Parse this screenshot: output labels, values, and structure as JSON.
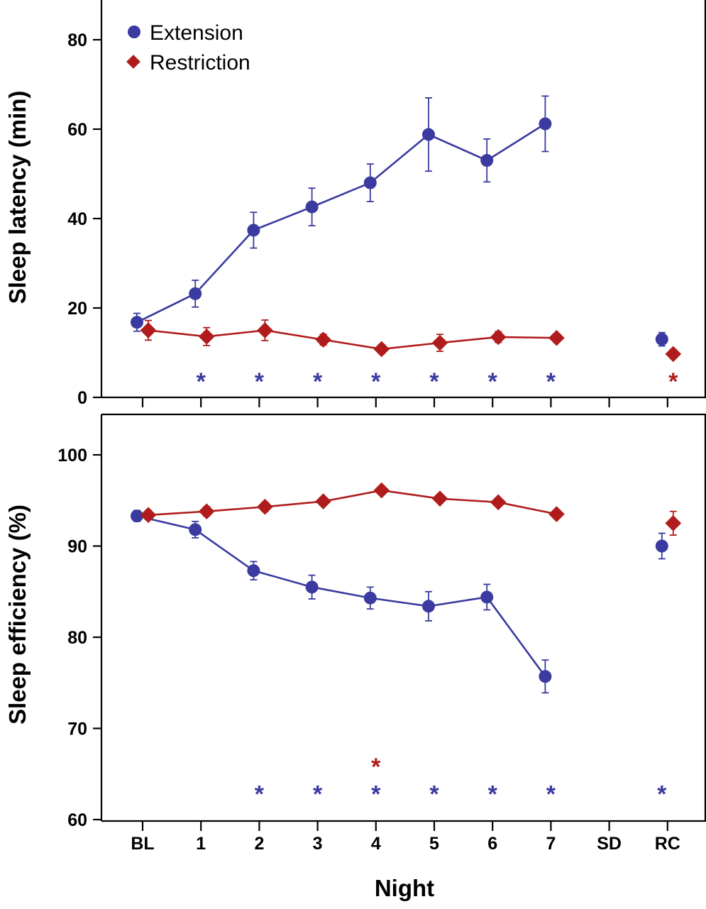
{
  "colors": {
    "extension": "#3a3aa0",
    "restriction": "#b01c1c",
    "axis": "#000000"
  },
  "legend": {
    "extension_label": "Extension",
    "restriction_label": "Restriction",
    "extension_icon": "circle-marker-icon",
    "restriction_icon": "diamond-marker-icon"
  },
  "xlabel": "Night",
  "chart_data": [
    {
      "type": "line",
      "panel": "top",
      "title": "",
      "xlabel": "Night",
      "ylabel": "Sleep latency (min)",
      "categories": [
        "BL",
        "1",
        "2",
        "3",
        "4",
        "5",
        "6",
        "7",
        "SD",
        "RC"
      ],
      "ylim": [
        0,
        90
      ],
      "yticks": [
        0,
        20,
        40,
        60,
        80
      ],
      "series": [
        {
          "name": "Extension",
          "color_key": "extension",
          "marker": "circle",
          "values": [
            16.8,
            23.2,
            37.4,
            42.6,
            48.0,
            58.8,
            53.0,
            61.2,
            null,
            13.0
          ],
          "errors": [
            2.0,
            3.0,
            4.0,
            4.2,
            4.2,
            8.2,
            4.8,
            6.2,
            null,
            1.5
          ],
          "connected": [
            true,
            true,
            true,
            true,
            true,
            true,
            true,
            true,
            false,
            false
          ]
        },
        {
          "name": "Restriction",
          "color_key": "restriction",
          "marker": "diamond",
          "values": [
            15.0,
            13.6,
            15.0,
            12.9,
            10.8,
            12.2,
            13.5,
            13.3,
            null,
            9.7
          ],
          "errors": [
            2.2,
            2.0,
            2.3,
            1.2,
            1.0,
            1.9,
            1.2,
            0.8,
            null,
            1.0
          ],
          "connected": [
            true,
            true,
            true,
            true,
            true,
            true,
            true,
            true,
            false,
            false
          ]
        }
      ],
      "significance": [
        {
          "category": "1",
          "series": "Extension",
          "value": 4.0,
          "label": "*"
        },
        {
          "category": "2",
          "series": "Extension",
          "value": 4.0,
          "label": "*"
        },
        {
          "category": "3",
          "series": "Extension",
          "value": 4.0,
          "label": "*"
        },
        {
          "category": "4",
          "series": "Extension",
          "value": 4.0,
          "label": "*"
        },
        {
          "category": "5",
          "series": "Extension",
          "value": 4.0,
          "label": "*"
        },
        {
          "category": "6",
          "series": "Extension",
          "value": 4.0,
          "label": "*"
        },
        {
          "category": "7",
          "series": "Extension",
          "value": 4.0,
          "label": "*"
        },
        {
          "category": "RC",
          "series": "Restriction",
          "value": 4.0,
          "label": "*"
        }
      ]
    },
    {
      "type": "line",
      "panel": "bottom",
      "title": "",
      "xlabel": "Night",
      "ylabel": "Sleep efficiency (%)",
      "categories": [
        "BL",
        "1",
        "2",
        "3",
        "4",
        "5",
        "6",
        "7",
        "SD",
        "RC"
      ],
      "ylim": [
        60,
        105
      ],
      "yticks": [
        60,
        70,
        80,
        90,
        100
      ],
      "series": [
        {
          "name": "Extension",
          "color_key": "extension",
          "marker": "circle",
          "values": [
            93.3,
            91.8,
            87.3,
            85.5,
            84.3,
            83.4,
            84.4,
            75.7,
            null,
            90.0
          ],
          "errors": [
            0.6,
            0.9,
            1.0,
            1.3,
            1.2,
            1.6,
            1.4,
            1.8,
            null,
            1.4
          ],
          "connected": [
            true,
            true,
            true,
            true,
            true,
            true,
            true,
            true,
            false,
            false
          ]
        },
        {
          "name": "Restriction",
          "color_key": "restriction",
          "marker": "diamond",
          "values": [
            93.4,
            93.8,
            94.3,
            94.9,
            96.1,
            95.2,
            94.8,
            93.5,
            null,
            92.5
          ],
          "errors": [
            0.5,
            0.5,
            0.5,
            0.4,
            0.3,
            0.3,
            0.3,
            0.3,
            null,
            1.3
          ],
          "connected": [
            true,
            true,
            true,
            true,
            true,
            true,
            true,
            true,
            false,
            false
          ]
        }
      ],
      "significance": [
        {
          "category": "4",
          "series": "Restriction",
          "value": 66.0,
          "label": "*"
        },
        {
          "category": "2",
          "series": "Extension",
          "value": 63.0,
          "label": "*"
        },
        {
          "category": "3",
          "series": "Extension",
          "value": 63.0,
          "label": "*"
        },
        {
          "category": "4",
          "series": "Extension",
          "value": 63.0,
          "label": "*"
        },
        {
          "category": "5",
          "series": "Extension",
          "value": 63.0,
          "label": "*"
        },
        {
          "category": "6",
          "series": "Extension",
          "value": 63.0,
          "label": "*"
        },
        {
          "category": "7",
          "series": "Extension",
          "value": 63.0,
          "label": "*"
        },
        {
          "category": "RC",
          "series": "Extension",
          "value": 63.0,
          "label": "*"
        }
      ]
    }
  ]
}
